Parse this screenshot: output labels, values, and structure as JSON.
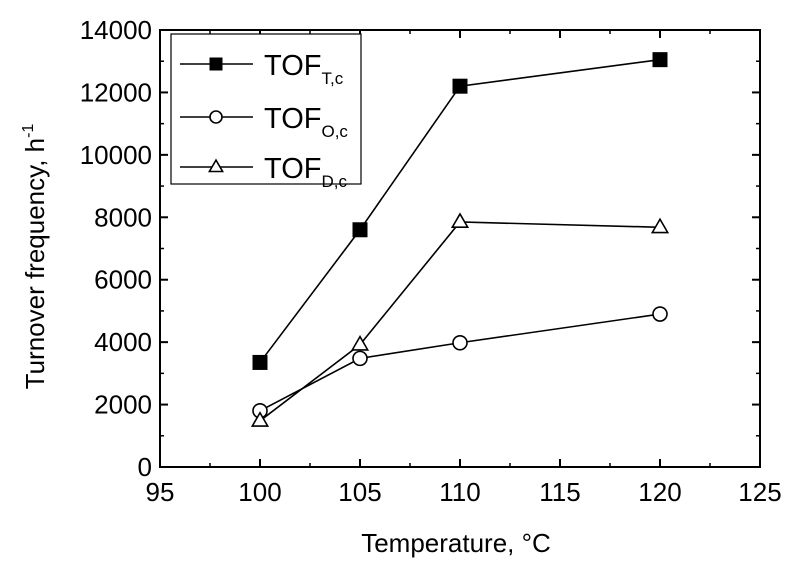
{
  "chart_data": {
    "type": "line",
    "xlabel": "Temperature, °C",
    "ylabel": "Turnover frequency, h",
    "ylabel_sup": "-1",
    "xlim": [
      95,
      125
    ],
    "ylim": [
      0,
      14000
    ],
    "xticks": [
      95,
      100,
      105,
      110,
      115,
      120,
      125
    ],
    "yticks": [
      0,
      2000,
      4000,
      6000,
      8000,
      10000,
      12000,
      14000
    ],
    "grid": false,
    "legend_position": "top-left",
    "series": [
      {
        "name": "TOF",
        "name_sub": "T,c",
        "marker": "filled-square",
        "color": "#000000",
        "x": [
          100,
          105,
          110,
          120
        ],
        "y": [
          3350,
          7600,
          12200,
          13050
        ]
      },
      {
        "name": "TOF",
        "name_sub": "O,c",
        "marker": "open-circle",
        "color": "#000000",
        "x": [
          100,
          105,
          110,
          120
        ],
        "y": [
          1800,
          3480,
          3980,
          4900
        ]
      },
      {
        "name": "TOF",
        "name_sub": "D,c",
        "marker": "open-triangle",
        "color": "#000000",
        "x": [
          100,
          105,
          110,
          120
        ],
        "y": [
          1480,
          3920,
          7850,
          7680
        ]
      }
    ]
  }
}
